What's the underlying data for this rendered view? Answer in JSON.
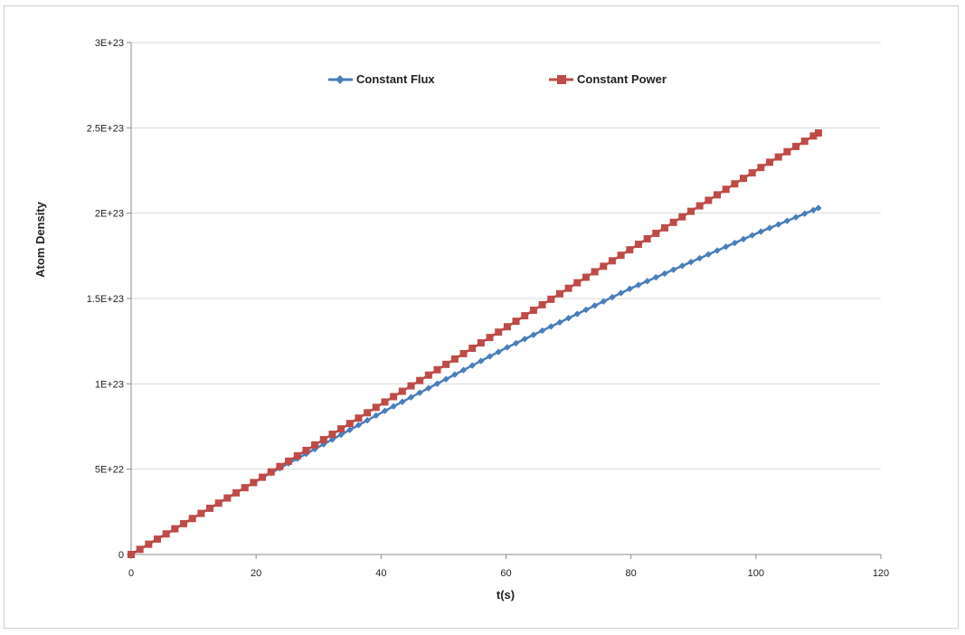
{
  "chart_data": {
    "type": "line",
    "title": "",
    "xlabel": "t(s)",
    "ylabel": "Atom Density",
    "xlim": [
      0,
      120
    ],
    "ylim": [
      0,
      3e+23
    ],
    "x_ticks": [
      0,
      20,
      40,
      60,
      80,
      100,
      120
    ],
    "x_tick_labels": [
      "0",
      "20",
      "40",
      "60",
      "80",
      "100",
      "120"
    ],
    "y_ticks": [
      0,
      5e+22,
      1e+23,
      1.5e+23,
      2e+23,
      2.5e+23,
      3e+23
    ],
    "y_tick_labels": [
      "0",
      "5E+22",
      "1E+23",
      "1.5E+23",
      "2E+23",
      "2.5E+23",
      "3E+23"
    ],
    "grid": "horizontal",
    "legend_position": "top",
    "x_start": 0,
    "x_end": 110,
    "x_step": 1.4,
    "series": [
      {
        "name": "Constant Flux",
        "marker": "diamond",
        "color": "#4a7ebb",
        "anchors": [
          [
            0,
            0
          ],
          [
            20,
            4.3e+22
          ],
          [
            40,
            8.3e+22
          ],
          [
            60,
            1.21e+23
          ],
          [
            80,
            1.56e+23
          ],
          [
            100,
            1.88e+23
          ],
          [
            110,
            2.03e+23
          ]
        ]
      },
      {
        "name": "Constant Power",
        "marker": "square",
        "color": "#be4b48",
        "anchors": [
          [
            0,
            0
          ],
          [
            20,
            4.3e+22
          ],
          [
            40,
            8.8e+22
          ],
          [
            60,
            1.33e+23
          ],
          [
            80,
            1.79e+23
          ],
          [
            100,
            2.25e+23
          ],
          [
            110,
            2.47e+23
          ]
        ]
      }
    ]
  }
}
